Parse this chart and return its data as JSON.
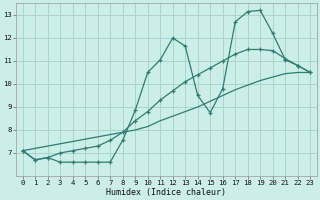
{
  "xlabel": "Humidex (Indice chaleur)",
  "bg_color": "#cceee8",
  "grid_color": "#aad4cc",
  "line_color": "#2e7d72",
  "xlim": [
    -0.5,
    23.5
  ],
  "ylim": [
    6.0,
    13.5
  ],
  "xticks": [
    0,
    1,
    2,
    3,
    4,
    5,
    6,
    7,
    8,
    9,
    10,
    11,
    12,
    13,
    14,
    15,
    16,
    17,
    18,
    19,
    20,
    21,
    22,
    23
  ],
  "yticks": [
    7,
    8,
    9,
    10,
    11,
    12,
    13
  ],
  "line_jagged_x": [
    0,
    1,
    2,
    3,
    4,
    5,
    6,
    7,
    8,
    9,
    10,
    11,
    12,
    13,
    14,
    15,
    16,
    17,
    18,
    19,
    20,
    21,
    22,
    23
  ],
  "line_jagged_y": [
    7.1,
    6.7,
    6.8,
    6.6,
    6.6,
    6.6,
    6.6,
    6.6,
    7.55,
    8.85,
    10.5,
    11.05,
    12.0,
    11.65,
    9.5,
    8.75,
    9.8,
    12.7,
    13.15,
    13.2,
    12.2,
    11.05,
    10.8,
    10.5
  ],
  "line_smooth_x": [
    0,
    1,
    2,
    3,
    4,
    5,
    6,
    7,
    8,
    9,
    10,
    11,
    12,
    13,
    14,
    15,
    16,
    17,
    18,
    19,
    20,
    21,
    22,
    23
  ],
  "line_smooth_y": [
    7.1,
    6.7,
    6.8,
    7.0,
    7.1,
    7.2,
    7.3,
    7.55,
    7.9,
    8.4,
    8.8,
    9.3,
    9.7,
    10.1,
    10.4,
    10.7,
    11.0,
    11.3,
    11.5,
    11.5,
    11.45,
    11.1,
    10.8,
    10.5
  ],
  "line_diag_x": [
    0,
    1,
    2,
    3,
    4,
    5,
    6,
    7,
    8,
    9,
    10,
    11,
    12,
    13,
    14,
    15,
    16,
    17,
    18,
    19,
    20,
    21,
    22,
    23
  ],
  "line_diag_y": [
    7.1,
    7.2,
    7.3,
    7.4,
    7.5,
    7.6,
    7.7,
    7.8,
    7.9,
    8.0,
    8.15,
    8.4,
    8.6,
    8.8,
    9.0,
    9.25,
    9.5,
    9.75,
    9.95,
    10.15,
    10.3,
    10.45,
    10.5,
    10.5
  ]
}
